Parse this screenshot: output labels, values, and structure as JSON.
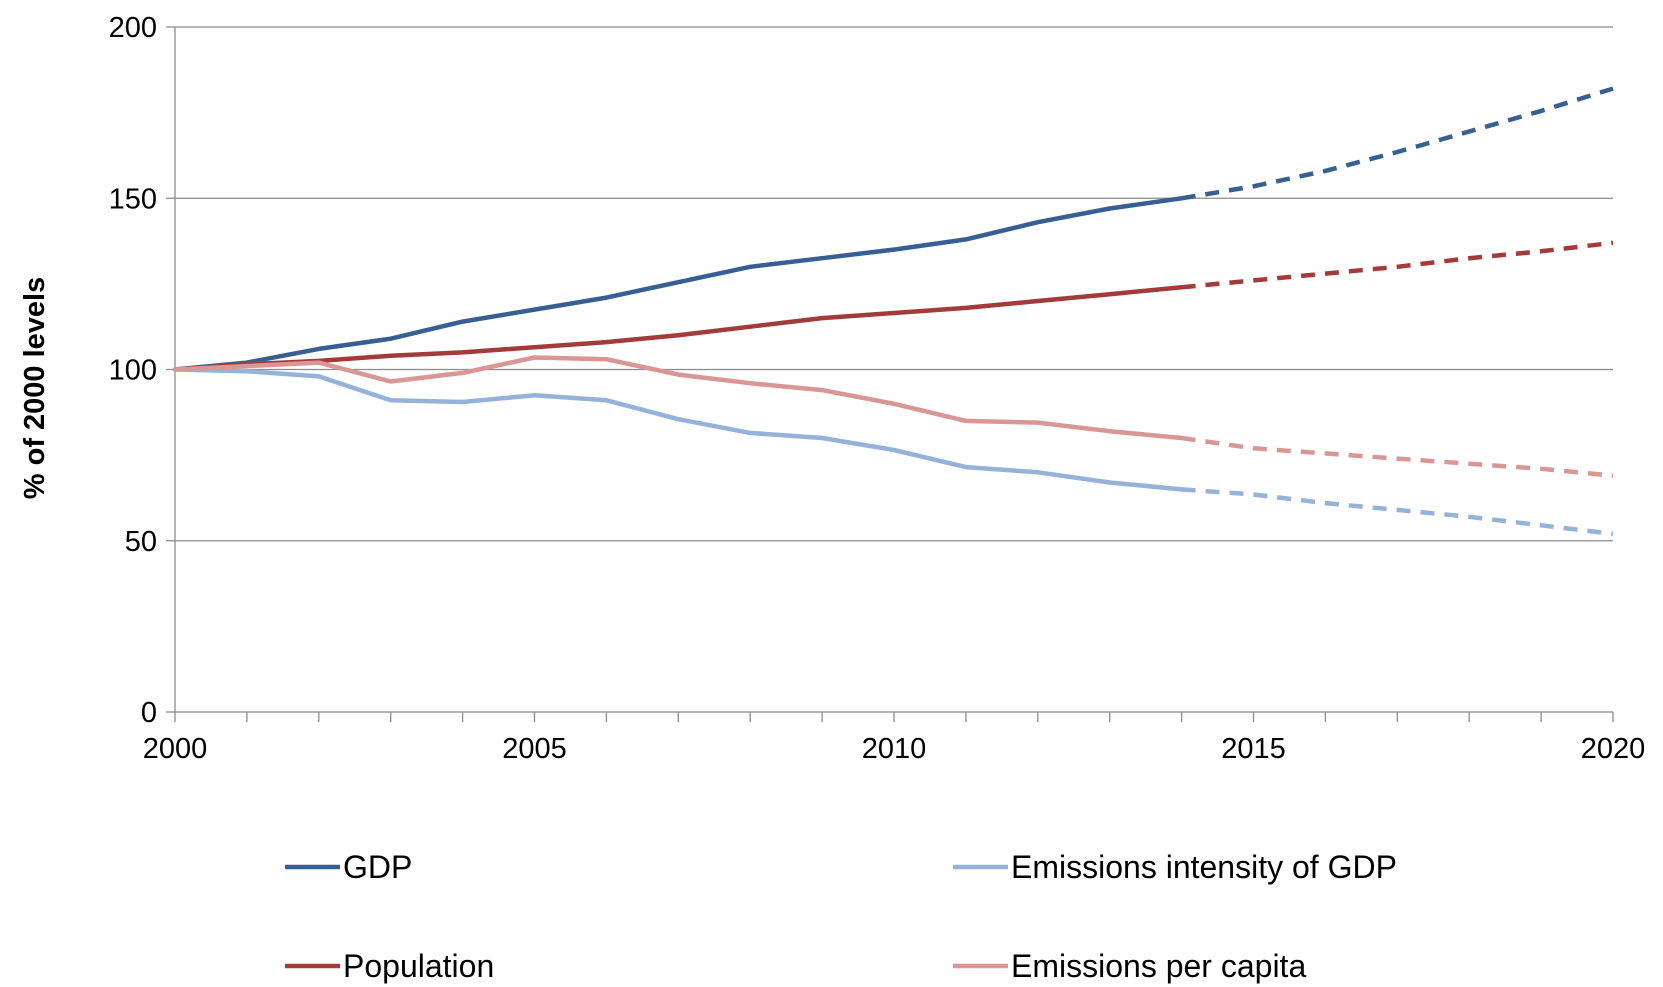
{
  "chart_data": {
    "type": "line",
    "title": "",
    "xlabel": "",
    "ylabel": "% of 2000 levels",
    "xlim": [
      2000,
      2020
    ],
    "ylim": [
      0,
      200
    ],
    "x_ticks": [
      "2000",
      "2005",
      "2010",
      "2015",
      "2020"
    ],
    "y_ticks": [
      "0",
      "50",
      "100",
      "150",
      "200"
    ],
    "grid": "horizontal",
    "legend_position": "bottom",
    "actual_end_year": 2014,
    "series": [
      {
        "name": "GDP",
        "color": "#375F93",
        "x": [
          2000,
          2001,
          2002,
          2003,
          2004,
          2005,
          2006,
          2007,
          2008,
          2009,
          2010,
          2011,
          2012,
          2013,
          2014,
          2015,
          2016,
          2017,
          2018,
          2019,
          2020
        ],
        "values": [
          100,
          102,
          106,
          109,
          114,
          117.5,
          121,
          125.5,
          130,
          132.5,
          135,
          138,
          143,
          147,
          150,
          153.5,
          158,
          163.5,
          169.5,
          175.5,
          182
        ]
      },
      {
        "name": "Population",
        "color": "#A33B3A",
        "x": [
          2000,
          2001,
          2002,
          2003,
          2004,
          2005,
          2006,
          2007,
          2008,
          2009,
          2010,
          2011,
          2012,
          2013,
          2014,
          2015,
          2016,
          2017,
          2018,
          2019,
          2020
        ],
        "values": [
          100,
          101.5,
          102.5,
          104,
          105,
          106.5,
          108,
          110,
          112.5,
          115,
          116.5,
          118,
          120,
          122,
          124,
          126,
          128,
          130,
          132.5,
          134.5,
          137
        ]
      },
      {
        "name": "Emissions intensity of GDP",
        "color": "#95B2DA",
        "x": [
          2000,
          2001,
          2002,
          2003,
          2004,
          2005,
          2006,
          2007,
          2008,
          2009,
          2010,
          2011,
          2012,
          2013,
          2014,
          2015,
          2016,
          2017,
          2018,
          2019,
          2020
        ],
        "values": [
          100,
          99.5,
          98,
          91,
          90.5,
          92.5,
          91,
          85.5,
          81.5,
          80,
          76.5,
          71.5,
          70,
          67,
          65,
          63.5,
          61,
          59,
          57,
          54.5,
          52
        ]
      },
      {
        "name": "Emissions per capita",
        "color": "#D99694",
        "x": [
          2000,
          2001,
          2002,
          2003,
          2004,
          2005,
          2006,
          2007,
          2008,
          2009,
          2010,
          2011,
          2012,
          2013,
          2014,
          2015,
          2016,
          2017,
          2018,
          2019,
          2020
        ],
        "values": [
          100,
          101,
          102,
          96.5,
          99,
          103.5,
          103,
          98.5,
          96,
          94,
          90,
          85,
          84.5,
          82,
          80,
          77,
          75.5,
          74,
          72.5,
          71,
          69
        ]
      }
    ]
  },
  "legend": {
    "items": [
      {
        "label": "GDP",
        "color": "#375F93"
      },
      {
        "label": "Emissions intensity of GDP",
        "color": "#95B2DA"
      },
      {
        "label": "Population",
        "color": "#A33B3A"
      },
      {
        "label": "Emissions per capita",
        "color": "#D99694"
      }
    ]
  }
}
